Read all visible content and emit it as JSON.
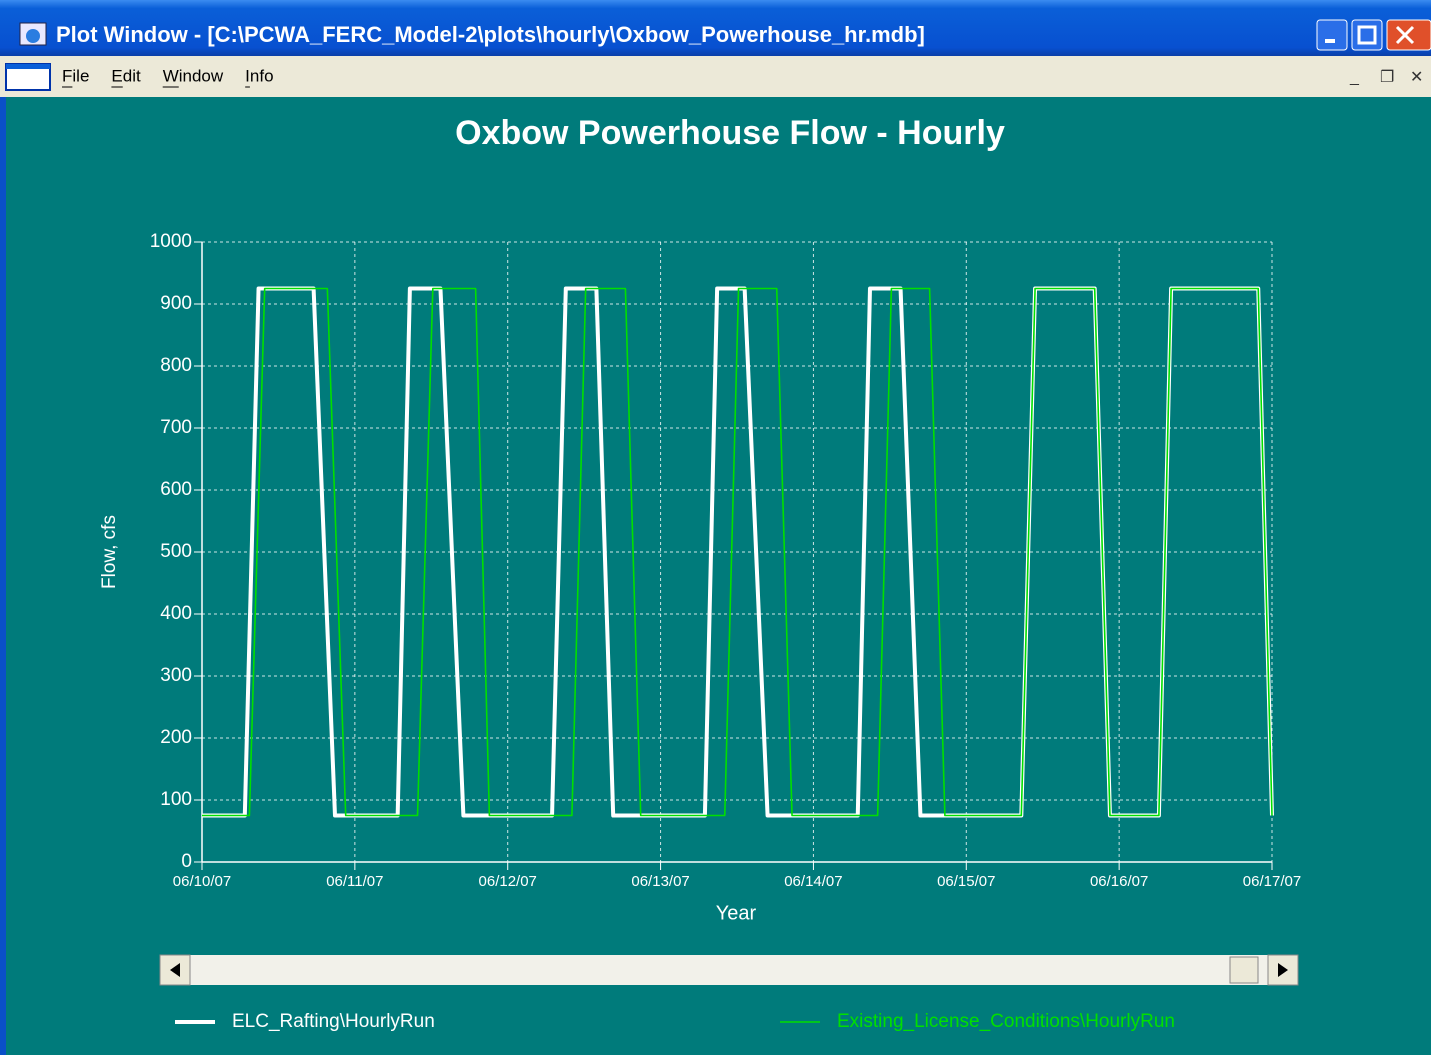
{
  "window": {
    "title": "Plot Window - [C:\\PCWA_FERC_Model-2\\plots\\hourly\\Oxbow_Powerhouse_hr.mdb]",
    "menu": [
      "File",
      "Edit",
      "Window",
      "Info"
    ]
  },
  "chart_data": {
    "type": "line",
    "title": "Oxbow Powerhouse Flow - Hourly",
    "xlabel": "Year",
    "ylabel": "Flow, cfs",
    "xlim": [
      0,
      7
    ],
    "xticks": [
      {
        "value": 0,
        "label": "06/10/07"
      },
      {
        "value": 1,
        "label": "06/11/07"
      },
      {
        "value": 2,
        "label": "06/12/07"
      },
      {
        "value": 3,
        "label": "06/13/07"
      },
      {
        "value": 4,
        "label": "06/14/07"
      },
      {
        "value": 5,
        "label": "06/15/07"
      },
      {
        "value": 6,
        "label": "06/16/07"
      },
      {
        "value": 7,
        "label": "06/17/07"
      }
    ],
    "ylim": [
      0,
      1000
    ],
    "yticks": [
      0,
      100,
      200,
      300,
      400,
      500,
      600,
      700,
      800,
      900,
      1000
    ],
    "grid": true,
    "series": [
      {
        "name": "ELC_Rafting\\HourlyRun",
        "color": "#ffffff",
        "x": [
          0,
          0.28,
          0.37,
          0.73,
          0.87,
          1.28,
          1.36,
          1.56,
          1.71,
          2.29,
          2.38,
          2.58,
          2.69,
          3.29,
          3.37,
          3.55,
          3.7,
          4.29,
          4.37,
          4.57,
          4.7,
          5.36,
          5.45,
          5.84,
          5.94,
          6.26,
          6.34,
          6.91,
          7
        ],
        "values": [
          75,
          75,
          925,
          925,
          75,
          75,
          925,
          925,
          75,
          75,
          925,
          925,
          75,
          75,
          925,
          925,
          75,
          75,
          925,
          925,
          75,
          75,
          925,
          925,
          75,
          75,
          925,
          925,
          75
        ]
      },
      {
        "name": "Existing_License_Conditions\\HourlyRun",
        "color": "#00e000",
        "x": [
          0,
          0.31,
          0.41,
          0.82,
          0.94,
          1.41,
          1.51,
          1.79,
          1.88,
          2.42,
          2.51,
          2.77,
          2.87,
          3.42,
          3.51,
          3.76,
          3.86,
          4.42,
          4.51,
          4.76,
          4.86,
          5.36,
          5.45,
          5.84,
          5.94,
          6.26,
          6.34,
          6.91,
          7
        ],
        "values": [
          75,
          75,
          925,
          925,
          75,
          75,
          925,
          925,
          75,
          75,
          925,
          925,
          75,
          75,
          925,
          925,
          75,
          75,
          925,
          925,
          75,
          75,
          925,
          925,
          75,
          75,
          925,
          925,
          75
        ]
      }
    ]
  }
}
